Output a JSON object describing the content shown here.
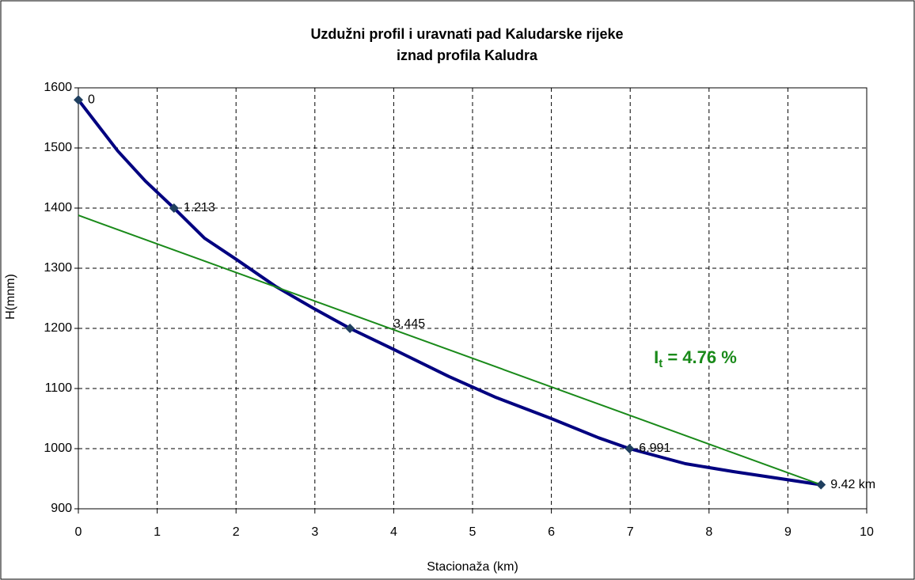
{
  "chart_data": {
    "type": "line",
    "title": [
      "Uzdužni profil i uravnati pad Kaludarske rijeke",
      "iznad profila Kaludra"
    ],
    "x_label": "Stacionaža (km)",
    "y_label": "H(mnm)",
    "xlim": [
      0,
      10
    ],
    "xticks": [
      0,
      1,
      2,
      3,
      4,
      5,
      6,
      7,
      8,
      9,
      10
    ],
    "ylim": [
      900,
      1600
    ],
    "yticks": [
      900,
      1000,
      1100,
      1200,
      1300,
      1400,
      1500,
      1600
    ],
    "grid": true,
    "series": [
      {
        "color": "#000080",
        "width": 4,
        "x": [
          0,
          0.5,
          0.85,
          1.213,
          1.6,
          2,
          2.5,
          3,
          3.445,
          4,
          4.7,
          5.3,
          6,
          6.6,
          6.991,
          7.7,
          8.3,
          9.42
        ],
        "values": [
          1580,
          1495,
          1445,
          1400,
          1350,
          1315,
          1270,
          1232,
          1200,
          1165,
          1120,
          1085,
          1050,
          1018,
          1000,
          975,
          962,
          940
        ]
      },
      {
        "color": "#1a8a1a",
        "width": 2,
        "x": [
          0,
          9.42
        ],
        "values": [
          1388,
          940
        ]
      },
      {
        "color": "#1f3f5f",
        "marker": "diamond",
        "x": [
          0,
          1.213,
          3.445,
          6.991,
          9.42
        ],
        "values": [
          1580,
          1400,
          1200,
          1000,
          940
        ],
        "value_labels": [
          "0",
          "1.213",
          "3.445",
          "6.991",
          "9.42 km"
        ]
      }
    ],
    "annotation": {
      "text": "I",
      "sub": "t",
      "rest": " = 4.76 %",
      "x": 7.3,
      "y": 1150
    }
  }
}
